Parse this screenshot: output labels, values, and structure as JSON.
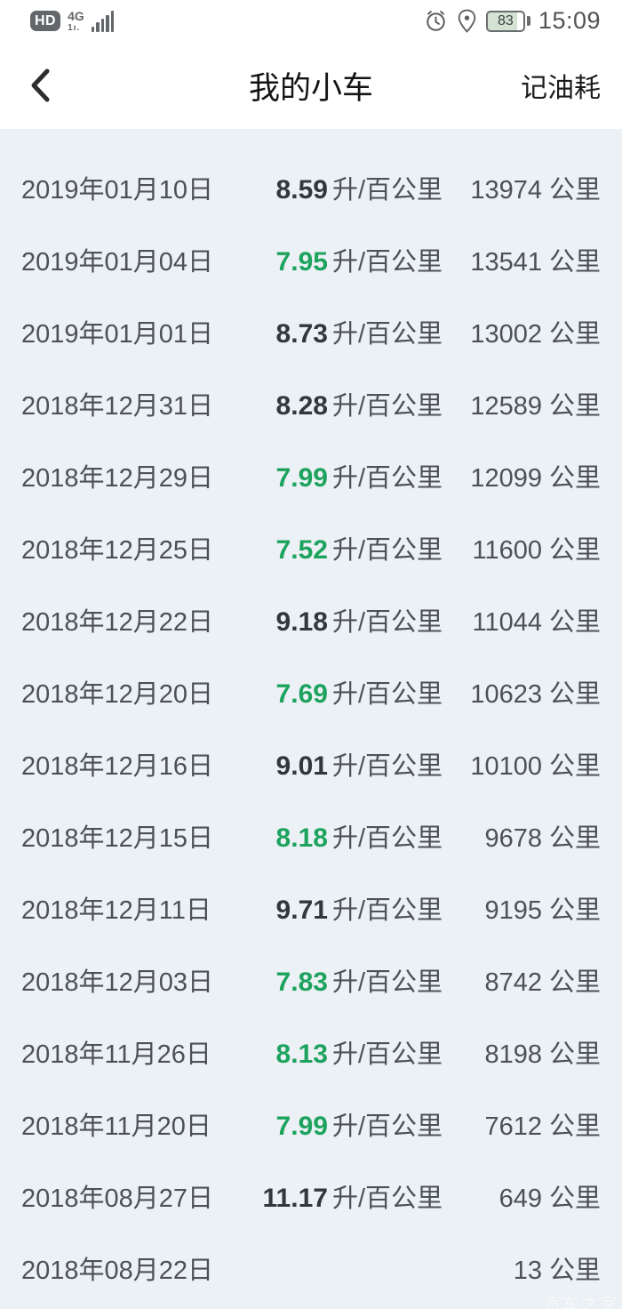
{
  "status_bar": {
    "hd_label": "HD",
    "network_label": "4G",
    "sim_label": "1ı.",
    "battery_percent": "83",
    "time": "15:09",
    "icons": [
      "alarm-icon",
      "location-icon",
      "battery-icon",
      "signal-bars-icon",
      "hd-icon"
    ]
  },
  "header": {
    "title": "我的小车",
    "back_icon": "chevron-left-icon",
    "action_label": "记油耗"
  },
  "list": {
    "consumption_unit": "升/百公里",
    "odometer_unit": "公里"
  },
  "records": [
    {
      "date": "2019年01月10日",
      "consumption": "8.59",
      "green": false,
      "odometer": "13974"
    },
    {
      "date": "2019年01月04日",
      "consumption": "7.95",
      "green": true,
      "odometer": "13541"
    },
    {
      "date": "2019年01月01日",
      "consumption": "8.73",
      "green": false,
      "odometer": "13002"
    },
    {
      "date": "2018年12月31日",
      "consumption": "8.28",
      "green": false,
      "odometer": "12589"
    },
    {
      "date": "2018年12月29日",
      "consumption": "7.99",
      "green": true,
      "odometer": "12099"
    },
    {
      "date": "2018年12月25日",
      "consumption": "7.52",
      "green": true,
      "odometer": "11600"
    },
    {
      "date": "2018年12月22日",
      "consumption": "9.18",
      "green": false,
      "odometer": "11044"
    },
    {
      "date": "2018年12月20日",
      "consumption": "7.69",
      "green": true,
      "odometer": "10623"
    },
    {
      "date": "2018年12月16日",
      "consumption": "9.01",
      "green": false,
      "odometer": "10100"
    },
    {
      "date": "2018年12月15日",
      "consumption": "8.18",
      "green": true,
      "odometer": "9678"
    },
    {
      "date": "2018年12月11日",
      "consumption": "9.71",
      "green": false,
      "odometer": "9195"
    },
    {
      "date": "2018年12月03日",
      "consumption": "7.83",
      "green": true,
      "odometer": "8742"
    },
    {
      "date": "2018年11月26日",
      "consumption": "8.13",
      "green": true,
      "odometer": "8198"
    },
    {
      "date": "2018年11月20日",
      "consumption": "7.99",
      "green": true,
      "odometer": "7612"
    },
    {
      "date": "2018年08月27日",
      "consumption": "11.17",
      "green": false,
      "odometer": "649"
    },
    {
      "date": "2018年08月22日",
      "consumption": "",
      "green": false,
      "odometer": "13"
    }
  ],
  "watermark": "汽车之家",
  "colors": {
    "accent_green": "#1ea35e",
    "number_dark": "#32373c",
    "text_gray": "#4d5156",
    "list_background": "#ecf1f6",
    "bar_background": "#ffffff"
  }
}
